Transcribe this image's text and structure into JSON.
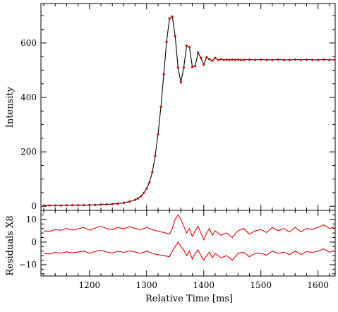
{
  "chart_data": [
    {
      "type": "scatter",
      "title": "",
      "xlabel": "",
      "ylabel": "Intensity",
      "xlim": [
        1115,
        1630
      ],
      "ylim": [
        -15,
        745
      ],
      "x_ticks": [
        1200,
        1300,
        1400,
        1500,
        1600
      ],
      "y_ticks": [
        0,
        200,
        400,
        600
      ],
      "y_tick_labels": [
        "0",
        "200",
        "400",
        "600"
      ],
      "grid": false,
      "series": [
        {
          "role": "data points",
          "marker": "dot",
          "color": "#d00000",
          "x": [
            1120,
            1130,
            1140,
            1150,
            1160,
            1170,
            1180,
            1190,
            1200,
            1210,
            1220,
            1230,
            1240,
            1250,
            1260,
            1270,
            1280,
            1285,
            1290,
            1295,
            1300,
            1305,
            1310,
            1315,
            1320,
            1325,
            1330,
            1335,
            1340,
            1345,
            1350,
            1355,
            1360,
            1365,
            1370,
            1375,
            1380,
            1385,
            1390,
            1395,
            1400,
            1405,
            1410,
            1415,
            1420,
            1425,
            1430,
            1435,
            1440,
            1445,
            1450,
            1455,
            1460,
            1465,
            1470,
            1480,
            1490,
            1500,
            1510,
            1520,
            1530,
            1540,
            1550,
            1560,
            1570,
            1580,
            1590,
            1600,
            1610,
            1620,
            1630
          ],
          "y": [
            3,
            3,
            3,
            3,
            4,
            4,
            4,
            4,
            5,
            5,
            6,
            7,
            8,
            10,
            13,
            17,
            24,
            29,
            37,
            49,
            65,
            88,
            125,
            185,
            265,
            365,
            485,
            605,
            690,
            697,
            625,
            510,
            455,
            510,
            590,
            585,
            512,
            515,
            565,
            545,
            520,
            548,
            540,
            535,
            545,
            538,
            540,
            538,
            539,
            538,
            539,
            538,
            539,
            538,
            538,
            539,
            538,
            539,
            538,
            538,
            539,
            538,
            538,
            539,
            538,
            539,
            538,
            538,
            539,
            538,
            538
          ]
        },
        {
          "role": "fitted curve",
          "line": "solid",
          "color": "#000000",
          "x": [
            1120,
            1130,
            1140,
            1150,
            1160,
            1170,
            1180,
            1190,
            1200,
            1210,
            1220,
            1230,
            1240,
            1250,
            1260,
            1270,
            1280,
            1285,
            1290,
            1295,
            1300,
            1305,
            1310,
            1315,
            1320,
            1325,
            1330,
            1335,
            1340,
            1345,
            1350,
            1355,
            1360,
            1365,
            1370,
            1375,
            1380,
            1385,
            1390,
            1395,
            1400,
            1405,
            1410,
            1415,
            1420,
            1425,
            1430,
            1435,
            1440,
            1445,
            1450,
            1455,
            1460,
            1465,
            1470,
            1480,
            1490,
            1500,
            1510,
            1520,
            1530,
            1540,
            1550,
            1560,
            1570,
            1580,
            1590,
            1600,
            1610,
            1620,
            1630
          ],
          "y": [
            3,
            3,
            3,
            3,
            4,
            4,
            4,
            4,
            5,
            5,
            6,
            7,
            8,
            10,
            13,
            17,
            24,
            29,
            37,
            49,
            65,
            88,
            125,
            185,
            265,
            365,
            485,
            605,
            690,
            697,
            625,
            510,
            455,
            510,
            590,
            585,
            512,
            515,
            565,
            545,
            520,
            548,
            540,
            535,
            545,
            538,
            540,
            538,
            539,
            538,
            539,
            538,
            539,
            538,
            538,
            539,
            538,
            539,
            538,
            538,
            539,
            538,
            538,
            539,
            538,
            539,
            538,
            538,
            539,
            538,
            538
          ]
        }
      ]
    },
    {
      "type": "line",
      "title": "",
      "xlabel": "Relative Time [ms]",
      "ylabel": "Residuals X8",
      "xlim": [
        1115,
        1630
      ],
      "ylim": [
        -15,
        14
      ],
      "x_ticks": [
        1200,
        1300,
        1400,
        1500,
        1600
      ],
      "x_tick_labels": [
        "1200",
        "1300",
        "1400",
        "1500",
        "1600"
      ],
      "y_ticks": [
        -10,
        0,
        10
      ],
      "y_tick_labels": [
        "−10",
        "0",
        "10"
      ],
      "grid": false,
      "series": [
        {
          "role": "upper residual envelope",
          "color": "#e00000",
          "x": [
            1120,
            1130,
            1140,
            1150,
            1160,
            1170,
            1180,
            1190,
            1200,
            1210,
            1220,
            1230,
            1240,
            1250,
            1260,
            1270,
            1280,
            1290,
            1300,
            1310,
            1320,
            1330,
            1340,
            1345,
            1350,
            1355,
            1360,
            1365,
            1370,
            1375,
            1380,
            1385,
            1390,
            1395,
            1400,
            1405,
            1410,
            1415,
            1420,
            1430,
            1440,
            1450,
            1460,
            1470,
            1480,
            1490,
            1500,
            1510,
            1520,
            1530,
            1540,
            1550,
            1560,
            1570,
            1580,
            1590,
            1600,
            1610,
            1620,
            1630
          ],
          "y": [
            5,
            4.7,
            5.5,
            5.2,
            6,
            5.3,
            5.8,
            6.5,
            5.2,
            6.2,
            7,
            6,
            5.5,
            6.5,
            5.8,
            6.8,
            6,
            5.4,
            6.5,
            5.5,
            4.8,
            4.2,
            3.5,
            6,
            10,
            12,
            10,
            7,
            4,
            6,
            2.5,
            5,
            7,
            4,
            1,
            4,
            6,
            3,
            5,
            3,
            4,
            2,
            5,
            6,
            3.5,
            5,
            5.5,
            4.2,
            6.5,
            5,
            6,
            4.5,
            6.5,
            4.5,
            6,
            5.5,
            6.5,
            7.5,
            6,
            6.8
          ]
        },
        {
          "role": "lower residual envelope",
          "color": "#e00000",
          "x": [
            1120,
            1130,
            1140,
            1150,
            1160,
            1170,
            1180,
            1190,
            1200,
            1210,
            1220,
            1230,
            1240,
            1250,
            1260,
            1270,
            1280,
            1290,
            1300,
            1310,
            1320,
            1330,
            1340,
            1345,
            1350,
            1355,
            1360,
            1365,
            1370,
            1375,
            1380,
            1385,
            1390,
            1395,
            1400,
            1405,
            1410,
            1415,
            1420,
            1430,
            1440,
            1450,
            1460,
            1470,
            1480,
            1490,
            1500,
            1510,
            1520,
            1530,
            1540,
            1550,
            1560,
            1570,
            1580,
            1590,
            1600,
            1610,
            1620,
            1630
          ],
          "y": [
            -5,
            -5.3,
            -4.6,
            -4.9,
            -4.3,
            -4.8,
            -4.4,
            -4,
            -5,
            -4.2,
            -3.6,
            -4.4,
            -4.9,
            -4,
            -4.6,
            -3.9,
            -4.4,
            -5,
            -4,
            -5,
            -5.6,
            -6,
            -6.5,
            -4,
            -2,
            0,
            -2,
            -3.5,
            -6,
            -4,
            -7.5,
            -5,
            -3.5,
            -6,
            -8,
            -6,
            -4.5,
            -7,
            -5,
            -7,
            -6,
            -8,
            -5,
            -4.5,
            -6.5,
            -5,
            -5,
            -5.8,
            -4,
            -5,
            -4.5,
            -5.5,
            -4,
            -5.5,
            -4.2,
            -4.6,
            -4,
            -3,
            -4.5,
            -3.8
          ]
        }
      ]
    }
  ]
}
